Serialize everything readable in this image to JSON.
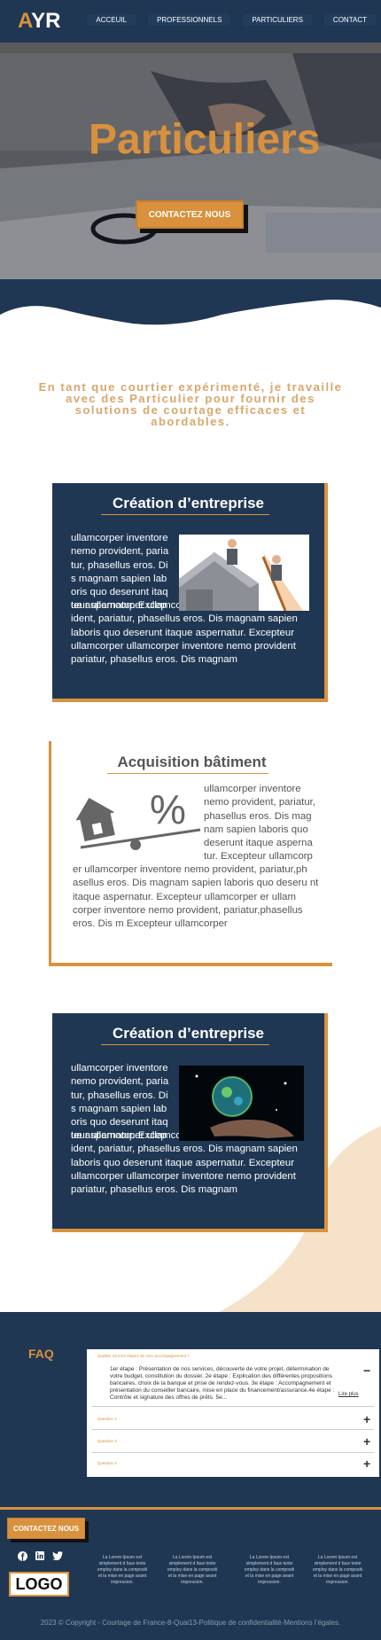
{
  "header": {
    "logo_accent": "A",
    "logo_rest": "YR",
    "nav": [
      "ACCEUIL",
      "PROFESSIONNELS",
      "PARTICULIERS",
      "CONTACT"
    ]
  },
  "hero": {
    "title": "Particuliers",
    "cta_label": "CONTACTEZ NOUS"
  },
  "intro": "En tant que courtier expérimenté, je travaille avec des Particulier pour fournir des solutions de courtage efficaces et abordables.",
  "cards": [
    {
      "title": "Création d’entreprise",
      "text_side": "ullamcorper inventore nemo provident, paria tur, phasellus eros. Di s magnam sapien lab oris quo deserunt itaq ue aspernatur. Excep",
      "text_full": "teur ullamcorper ullamcorperinventore nemo prov ident, pariatur, phasellus eros. Dis magnam sapien laboris quo deserunt itaque aspernatur. Excepteur ullamcorper ullamcorper inventore nemo provident pariatur, phasellus eros. Dis magnam",
      "image_icon": "roof-workers-illustration"
    },
    {
      "title": "Acquisition bâtiment",
      "text_side": "ullamcorper inventore nemo provident, pariatur, phasellus eros. Dis mag nam sapien laboris quo deserunt itaque asperna tur. Excepteur ullamcorp",
      "text_full": "er ullamcorper inventore nemo provident, pariatur,ph asellus eros. Dis magnam sapien laboris quo deseru nt itaque aspernatur. Excepteur ullamcorper er ullam corper inventore nemo provident, pariatur,phasellus eros. Dis m Excepteur ullamcorper",
      "image_icon": "house-percent-scale-icon"
    },
    {
      "title": "Création d’entreprise",
      "text_side": "ullamcorper inventore nemo provident, paria tur, phasellus eros. Di s magnam sapien lab oris quo deserunt itaq ue aspernatur. Excep",
      "text_full": "teur ullamcorper ullamcorperinventore nemo prov ident, pariatur, phasellus eros. Dis magnam sapien laboris quo deserunt itaque aspernatur. Excepteur ullamcorper ullamcorper inventore nemo provident pariatur, phasellus eros. Dis magnam",
      "image_icon": "globe-in-hand-image"
    }
  ],
  "faq": {
    "title": "FAQ",
    "items": [
      {
        "question": "Quelles sont les étapes de mon accompagnement ?",
        "answer": "1er étape : Présentation de nos services, découverte de votre projet, détermination de votre budget, constitution du dossier. 2e étape : Explication des différentes propositions bancaires, choix de la banque et prise de rendez-vous. 3e étape : Accompagnement et présentation du conseiller bancaire, mise en place du financement/assurance.4e étape : Contrôle et signature des offres de prêts. 5e...",
        "link": "Lire plus",
        "sign": "−"
      },
      {
        "question": "Question 2",
        "sign": "+"
      },
      {
        "question": "Question 3",
        "sign": "+"
      },
      {
        "question": "Question 4",
        "sign": "+"
      }
    ]
  },
  "footer": {
    "cta_label": "CONTACTEZ NOUS",
    "social": [
      "facebook-icon",
      "linkedin-icon",
      "twitter-icon"
    ],
    "logo": "LOGO",
    "columns": [
      "La Lorem Ipsum est simplement d faux texte employ dans la compositi et la mise en page avant impression.",
      "La Lorem Ipsum est simplement d faux texte employ dans la compositi et la mise en page avant impression.",
      "La Lorem Ipsum est simplement d faux texte employ dans la compositi et la mise en page avant impression.",
      "La Lorem Ipsum est simplement d faux texte employ dans la compositi et la mise en page avant impression."
    ],
    "copyright": "2023 © Copyright  - Courtage de France-8-Quai13-Politique de confidentialité-Mentions l’égales."
  },
  "colors": {
    "navy": "#1f3753",
    "accent": "#d9913d",
    "peach": "#f6e2c8"
  }
}
